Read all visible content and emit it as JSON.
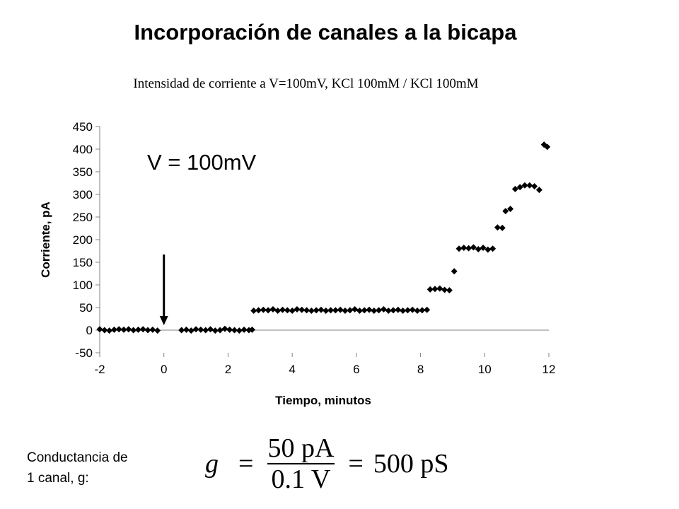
{
  "slide": {
    "title": "Incorporación de canales a la bicapa",
    "conductance_label_line1": "Conductancia de",
    "conductance_label_line2": "1 canal, g:",
    "formula": {
      "lhs": "g",
      "equals": "=",
      "numerator": "50 pA",
      "denominator": "0.1 V",
      "result": "500 pS"
    }
  },
  "chart_data": {
    "type": "scatter",
    "title": "",
    "subtitle": "Intensidad de corriente a V=100mV, KCl 100mM / KCl 100mM",
    "annotation": "V = 100mV",
    "xlabel": "Tiempo, minutos",
    "ylabel": "Corriente, pA",
    "xlim": [
      -2,
      12
    ],
    "ylim": [
      -50,
      450
    ],
    "xticks": [
      -2,
      0,
      2,
      4,
      6,
      8,
      10,
      12
    ],
    "yticks": [
      -50,
      0,
      50,
      100,
      150,
      200,
      250,
      300,
      350,
      400,
      450
    ],
    "grid": false,
    "arrow_at_x": 0,
    "marker": "diamond",
    "marker_color": "#000000",
    "series": [
      {
        "points": [
          [
            -2.0,
            2
          ],
          [
            -1.85,
            0
          ],
          [
            -1.7,
            -1
          ],
          [
            -1.55,
            1
          ],
          [
            -1.4,
            2
          ],
          [
            -1.25,
            1
          ],
          [
            -1.1,
            2
          ],
          [
            -0.95,
            0
          ],
          [
            -0.8,
            1
          ],
          [
            -0.65,
            2
          ],
          [
            -0.5,
            0
          ],
          [
            -0.35,
            1
          ],
          [
            -0.2,
            -1
          ],
          [
            0.55,
            0
          ],
          [
            0.7,
            1
          ],
          [
            0.85,
            -1
          ],
          [
            1.0,
            2
          ],
          [
            1.15,
            1
          ],
          [
            1.3,
            0
          ],
          [
            1.45,
            2
          ],
          [
            1.6,
            -1
          ],
          [
            1.75,
            0
          ],
          [
            1.9,
            3
          ],
          [
            2.05,
            1
          ],
          [
            2.2,
            0
          ],
          [
            2.35,
            -1
          ],
          [
            2.5,
            1
          ],
          [
            2.65,
            0
          ],
          [
            2.75,
            1
          ],
          [
            2.8,
            43
          ],
          [
            2.95,
            44
          ],
          [
            3.1,
            45
          ],
          [
            3.25,
            44
          ],
          [
            3.4,
            46
          ],
          [
            3.55,
            43
          ],
          [
            3.7,
            45
          ],
          [
            3.85,
            44
          ],
          [
            4.0,
            43
          ],
          [
            4.15,
            46
          ],
          [
            4.3,
            45
          ],
          [
            4.45,
            44
          ],
          [
            4.6,
            43
          ],
          [
            4.75,
            44
          ],
          [
            4.9,
            45
          ],
          [
            5.05,
            43
          ],
          [
            5.2,
            44
          ],
          [
            5.35,
            44
          ],
          [
            5.5,
            45
          ],
          [
            5.65,
            43
          ],
          [
            5.8,
            44
          ],
          [
            5.95,
            46
          ],
          [
            6.1,
            43
          ],
          [
            6.25,
            44
          ],
          [
            6.4,
            45
          ],
          [
            6.55,
            43
          ],
          [
            6.7,
            44
          ],
          [
            6.85,
            46
          ],
          [
            7.0,
            43
          ],
          [
            7.15,
            44
          ],
          [
            7.3,
            45
          ],
          [
            7.45,
            43
          ],
          [
            7.6,
            44
          ],
          [
            7.75,
            45
          ],
          [
            7.9,
            43
          ],
          [
            8.05,
            44
          ],
          [
            8.2,
            45
          ],
          [
            8.3,
            90
          ],
          [
            8.45,
            91
          ],
          [
            8.6,
            92
          ],
          [
            8.75,
            89
          ],
          [
            8.9,
            88
          ],
          [
            9.05,
            130
          ],
          [
            9.2,
            180
          ],
          [
            9.35,
            182
          ],
          [
            9.5,
            181
          ],
          [
            9.65,
            183
          ],
          [
            9.8,
            179
          ],
          [
            9.95,
            182
          ],
          [
            10.1,
            178
          ],
          [
            10.25,
            180
          ],
          [
            10.4,
            227
          ],
          [
            10.55,
            226
          ],
          [
            10.65,
            263
          ],
          [
            10.8,
            268
          ],
          [
            10.95,
            312
          ],
          [
            11.1,
            316
          ],
          [
            11.25,
            320
          ],
          [
            11.4,
            320
          ],
          [
            11.55,
            318
          ],
          [
            11.7,
            310
          ],
          [
            11.85,
            410
          ],
          [
            11.95,
            405
          ]
        ]
      }
    ]
  }
}
